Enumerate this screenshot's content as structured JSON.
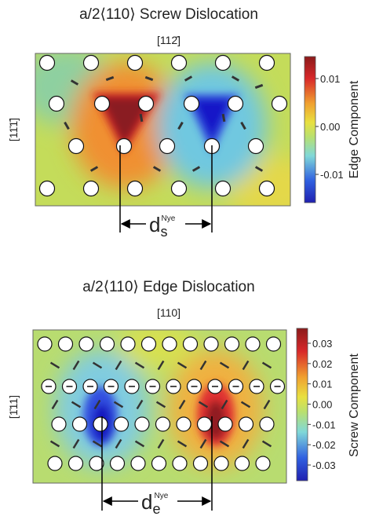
{
  "panels": [
    {
      "title": "a/2⟨110⟩ Screw Dislocation",
      "direction_top": "[112̄]",
      "direction_side": "[11̄1̄]",
      "colorbar_label": "Edge Component",
      "colorbar_ticks": [
        "0.01",
        "0.00",
        "-0.01"
      ],
      "distance": {
        "symbol": "d",
        "sub": "s",
        "sup": "Nye"
      }
    },
    {
      "title": "a/2⟨110⟩ Edge Dislocation",
      "direction_top": "[110]",
      "direction_side": "[1̄11]",
      "colorbar_label": "Screw Component",
      "colorbar_ticks": [
        "0.03",
        "0.02",
        "0.01",
        "0.00",
        "-0.01",
        "-0.02",
        "-0.03"
      ],
      "distance": {
        "symbol": "d",
        "sub": "e",
        "sup": "Nye"
      }
    }
  ]
}
